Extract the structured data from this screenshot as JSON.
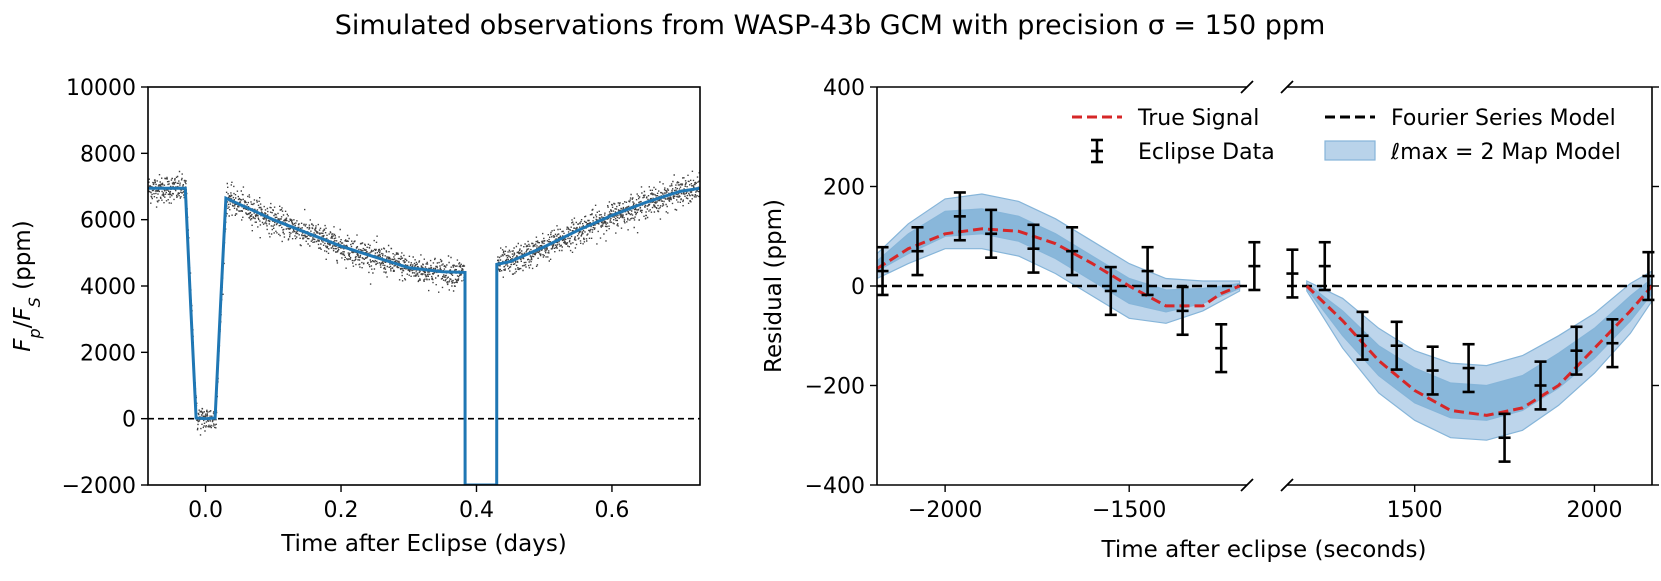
{
  "figure": {
    "title": "Simulated observations from WASP-43b GCM with precision σ = 150 ppm"
  },
  "colors": {
    "model": "#1f77b4",
    "true_signal": "#d62728",
    "band_outer": "#b9d3ea",
    "band_inner": "#86b5d9",
    "data": "#000000"
  },
  "chart_data": [
    {
      "type": "scatter",
      "title": "",
      "xlabel": "Time after Eclipse (days)",
      "ylabel": "F_p/F_S (ppm)",
      "xlim": [
        -0.085,
        0.73
      ],
      "ylim": [
        -2000,
        10000
      ],
      "xticks": [
        0.0,
        0.2,
        0.4,
        0.6
      ],
      "xtick_labels": [
        "0.0",
        "0.2",
        "0.4",
        "0.6"
      ],
      "yticks": [
        -2000,
        0,
        2000,
        4000,
        6000,
        8000,
        10000
      ],
      "ytick_labels": [
        "−2000",
        "0",
        "2000",
        "4000",
        "6000",
        "8000",
        "10000"
      ],
      "zero_line": 0,
      "series": [
        {
          "name": "Model light curve",
          "kind": "line",
          "color": "#1f77b4",
          "x": [
            -0.085,
            -0.03,
            -0.022,
            -0.014,
            0.0,
            0.014,
            0.022,
            0.03,
            0.1,
            0.2,
            0.3,
            0.35,
            0.383,
            0.3832,
            0.4298,
            0.43,
            0.45,
            0.5,
            0.55,
            0.6,
            0.65,
            0.7,
            0.73
          ],
          "y": [
            6950,
            6950,
            3400,
            20,
            0,
            20,
            3400,
            6650,
            6000,
            5200,
            4550,
            4430,
            4410,
            -2000,
            -2000,
            4650,
            4740,
            5180,
            5680,
            6130,
            6520,
            6850,
            6950
          ]
        },
        {
          "name": "Simulated data",
          "kind": "scatter_band",
          "color": "#000000",
          "noise_ppm": 150
        }
      ]
    },
    {
      "type": "line",
      "title": "",
      "xlabel": "Time after eclipse (seconds)",
      "ylabel": "Residual (ppm)",
      "ylim": [
        -400,
        400
      ],
      "yticks": [
        -400,
        -200,
        0,
        200,
        400
      ],
      "ytick_labels": [
        "−400",
        "−200",
        "0",
        "200",
        "400"
      ],
      "broken_x_axis": true,
      "segments": [
        {
          "xlim": [
            -2185,
            -1180
          ],
          "xticks": [
            -2000,
            -1500
          ],
          "xtick_labels": [
            "−2000",
            "−1500"
          ]
        },
        {
          "xlim": [
            1145,
            2160
          ],
          "xticks": [
            1500,
            2000
          ],
          "xtick_labels": [
            "1500",
            "2000"
          ]
        }
      ],
      "legend": {
        "position": "top",
        "entries": [
          {
            "label": "True Signal",
            "kind": "dashed-line",
            "color": "#d62728"
          },
          {
            "label": "Fourier Series Model",
            "kind": "dashed-line",
            "color": "#000000"
          },
          {
            "label": "Eclipse Data",
            "kind": "errorbar",
            "color": "#000000"
          },
          {
            "label": "ℓmax = 2 Map Model",
            "kind": "band",
            "color": "#86b5d9"
          }
        ]
      },
      "series": [
        {
          "name": "True Signal",
          "x": [
            -2185,
            -2100,
            -2000,
            -1900,
            -1800,
            -1700,
            -1600,
            -1500,
            -1400,
            -1300,
            -1250,
            -1200,
            1200,
            1300,
            1400,
            1500,
            1600,
            1700,
            1800,
            1900,
            2000,
            2100,
            2160
          ],
          "y": [
            35,
            75,
            105,
            115,
            110,
            85,
            45,
            0,
            -40,
            -40,
            -15,
            0,
            0,
            -70,
            -150,
            -210,
            -250,
            -260,
            -245,
            -200,
            -125,
            -50,
            0
          ]
        },
        {
          "name": "Fourier Series Model",
          "x": [
            -2185,
            -1180,
            1145,
            2160
          ],
          "y": [
            0,
            0,
            0,
            0
          ]
        },
        {
          "name": "Map Model",
          "x": [
            -2185,
            -2100,
            -2000,
            -1900,
            -1800,
            -1700,
            -1600,
            -1500,
            -1400,
            -1300,
            -1200,
            1200,
            1300,
            1400,
            1500,
            1600,
            1700,
            1800,
            1900,
            2000,
            2100,
            2160
          ],
          "y": [
            40,
            85,
            125,
            130,
            115,
            80,
            35,
            -10,
            -30,
            -20,
            0,
            0,
            -75,
            -150,
            -200,
            -230,
            -235,
            -215,
            -170,
            -115,
            -45,
            0
          ],
          "inner_half_width": [
            10,
            20,
            25,
            25,
            25,
            25,
            25,
            25,
            22,
            15,
            5,
            5,
            25,
            30,
            35,
            35,
            35,
            35,
            35,
            30,
            25,
            15
          ],
          "outer_half_width": [
            25,
            40,
            50,
            55,
            55,
            55,
            55,
            55,
            45,
            30,
            10,
            10,
            50,
            65,
            70,
            75,
            75,
            75,
            70,
            60,
            50,
            30
          ]
        },
        {
          "name": "Eclipse Data",
          "x": [
            -2170,
            -2075,
            -1960,
            -1875,
            -1760,
            -1655,
            -1550,
            -1450,
            -1355,
            -1250,
            -1160,
            1160,
            1250,
            1355,
            1450,
            1550,
            1650,
            1750,
            1850,
            1950,
            2050,
            2150
          ],
          "y": [
            30,
            70,
            140,
            105,
            75,
            70,
            -10,
            30,
            -50,
            -125,
            40,
            25,
            40,
            -100,
            -120,
            -170,
            -165,
            -305,
            -200,
            -130,
            -115,
            20
          ],
          "yerr": 48
        }
      ]
    }
  ]
}
